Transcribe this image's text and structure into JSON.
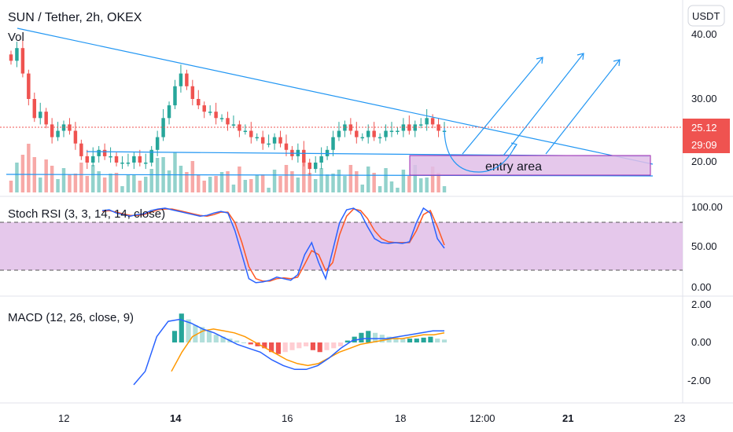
{
  "header": {
    "symbol_title": "SUN / Tether, 2h, OKEX",
    "volume_label": "Vol",
    "currency_button": "USDT"
  },
  "colors": {
    "up": "#26a69a",
    "down": "#ef5350",
    "trendline": "#2196f3",
    "stoch_k": "#2962ff",
    "stoch_d": "#ff5722",
    "stoch_band": "#e1bee7",
    "macd_line": "#2962ff",
    "signal_line": "#ff9800",
    "price_tag": "#ef5350",
    "entry_fill": "#e1bee7",
    "entry_border": "#9c27b0"
  },
  "price_pane": {
    "y_ticks": [
      "40.00",
      "30.00",
      "20.00"
    ],
    "current_price": "25.12",
    "countdown": "29:09",
    "annotation": "entry area"
  },
  "stoch_pane": {
    "title": "Stoch RSI (3, 3, 14, 14, close)",
    "y_ticks": [
      "100.00",
      "50.00",
      "0.00"
    ]
  },
  "macd_pane": {
    "title": "MACD (12, 26, close, 9)",
    "y_ticks": [
      "2.00",
      "0.00",
      "-2.00"
    ]
  },
  "x_axis": {
    "labels": [
      "12",
      "14",
      "16",
      "18",
      "12:00",
      "21",
      "23"
    ]
  },
  "chart_data": [
    {
      "type": "candlestick",
      "title": "SUN / Tether, 2h, OKEX",
      "ylim": [
        14,
        42
      ],
      "x_ticks": [
        "12",
        "14",
        "16",
        "18",
        "12:00",
        "21",
        "23"
      ],
      "y_ticks": [
        40,
        30,
        20
      ],
      "series": [
        {
          "name": "price",
          "close_approx": [
            36,
            38,
            34,
            30,
            27,
            28,
            26,
            24,
            25,
            26,
            25,
            23,
            21,
            20,
            21,
            22,
            21,
            21,
            20,
            20,
            20,
            21,
            20,
            20,
            22,
            24,
            27,
            29,
            32,
            34,
            32,
            30,
            29,
            28,
            28,
            27,
            27,
            26,
            26,
            25,
            25,
            24,
            24,
            23,
            23,
            24,
            23,
            22,
            21,
            22,
            20,
            19,
            20,
            21,
            22,
            24,
            25,
            26,
            25,
            24,
            24,
            25,
            24,
            24,
            25,
            25,
            25,
            26,
            25,
            26,
            26,
            27,
            26,
            25,
            25
          ]
        }
      ]
    },
    {
      "type": "line",
      "title": "Stoch RSI (3, 3, 14, 14, close)",
      "ylim": [
        0,
        100
      ],
      "y_ticks": [
        100,
        50,
        0
      ],
      "bands": [
        80,
        20
      ],
      "series": [
        {
          "name": "K",
          "values": [
            95,
            96,
            92,
            90,
            88,
            90,
            91,
            95,
            97,
            98,
            96,
            94,
            92,
            90,
            88,
            89,
            92,
            94,
            92,
            70,
            40,
            10,
            5,
            6,
            8,
            12,
            10,
            8,
            15,
            40,
            55,
            30,
            10,
            45,
            80,
            96,
            98,
            92,
            75,
            60,
            55,
            54,
            55,
            54,
            56,
            80,
            98,
            92,
            60,
            48
          ]
        },
        {
          "name": "D",
          "values": [
            94,
            95,
            93,
            91,
            89,
            89,
            90,
            93,
            96,
            97,
            97,
            95,
            93,
            91,
            89,
            88,
            90,
            93,
            93,
            80,
            55,
            25,
            10,
            7,
            7,
            10,
            11,
            10,
            12,
            28,
            45,
            40,
            20,
            30,
            65,
            88,
            97,
            95,
            85,
            70,
            60,
            56,
            55,
            55,
            55,
            70,
            90,
            95,
            75,
            52
          ]
        }
      ]
    },
    {
      "type": "bar",
      "title": "MACD (12, 26, close, 9)",
      "ylim": [
        -2.5,
        2
      ],
      "y_ticks": [
        2,
        0,
        -2
      ],
      "series": [
        {
          "name": "histogram",
          "values": [
            0.6,
            1.5,
            1.2,
            0.9,
            0.8,
            0.6,
            0.4,
            0.3,
            0.2,
            0.1,
            0.0,
            -0.1,
            -0.2,
            -0.3,
            -0.5,
            -0.6,
            -0.5,
            -0.4,
            -0.3,
            -0.2,
            -0.4,
            -0.5,
            -0.4,
            -0.3,
            -0.2,
            0.1,
            0.3,
            0.5,
            0.6,
            0.5,
            0.4,
            0.3,
            0.25,
            0.2,
            0.2,
            0.2,
            0.25,
            0.3,
            0.2,
            0.15
          ]
        },
        {
          "name": "MACD",
          "values": [
            -2.2,
            -1.5,
            0.3,
            1.1,
            1.2,
            1.0,
            0.7,
            0.5,
            0.2,
            -0.1,
            -0.3,
            -0.5,
            -0.9,
            -1.2,
            -1.4,
            -1.4,
            -1.2,
            -0.8,
            -0.3,
            0.1,
            0.2,
            0.2,
            0.2,
            0.3,
            0.4,
            0.5,
            0.6,
            0.6
          ]
        },
        {
          "name": "signal",
          "values": [
            -1.5,
            -0.5,
            0.3,
            0.6,
            0.7,
            0.6,
            0.5,
            0.3,
            0.0,
            -0.3,
            -0.6,
            -0.9,
            -1.1,
            -1.2,
            -1.1,
            -0.8,
            -0.5,
            -0.3,
            -0.1,
            0.0,
            0.1,
            0.2,
            0.2,
            0.3,
            0.4,
            0.4,
            0.5
          ]
        }
      ]
    }
  ]
}
